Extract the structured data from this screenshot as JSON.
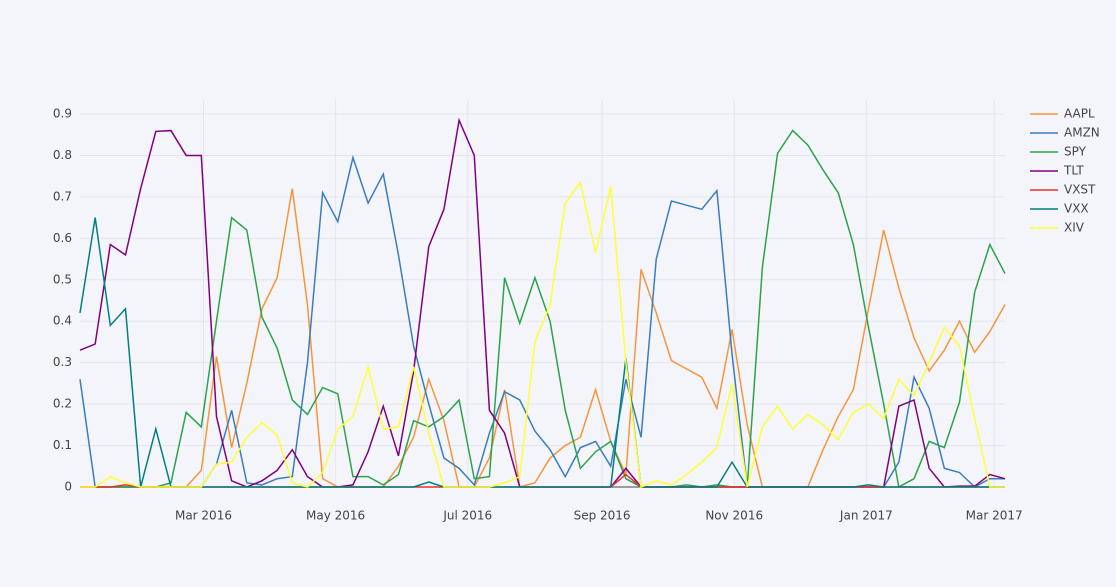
{
  "chart_data": {
    "type": "line",
    "x": [
      "2016-01-04",
      "2016-01-11",
      "2016-01-18",
      "2016-01-25",
      "2016-02-01",
      "2016-02-08",
      "2016-02-15",
      "2016-02-22",
      "2016-02-29",
      "2016-03-07",
      "2016-03-14",
      "2016-03-21",
      "2016-03-28",
      "2016-04-04",
      "2016-04-11",
      "2016-04-18",
      "2016-04-25",
      "2016-05-02",
      "2016-05-09",
      "2016-05-16",
      "2016-05-23",
      "2016-05-30",
      "2016-06-06",
      "2016-06-13",
      "2016-06-20",
      "2016-06-27",
      "2016-07-04",
      "2016-07-11",
      "2016-07-18",
      "2016-07-25",
      "2016-08-01",
      "2016-08-08",
      "2016-08-15",
      "2016-08-22",
      "2016-08-29",
      "2016-09-05",
      "2016-09-12",
      "2016-09-19",
      "2016-09-26",
      "2016-10-03",
      "2016-10-10",
      "2016-10-17",
      "2016-10-24",
      "2016-10-31",
      "2016-11-07",
      "2016-11-14",
      "2016-11-21",
      "2016-11-28",
      "2016-12-05",
      "2016-12-12",
      "2016-12-19",
      "2016-12-26",
      "2017-01-02",
      "2017-01-09",
      "2017-01-16",
      "2017-01-23",
      "2017-01-30",
      "2017-02-06",
      "2017-02-13",
      "2017-02-20",
      "2017-02-27",
      "2017-03-06"
    ],
    "series": [
      {
        "name": "AAPL",
        "color": "#f7953a",
        "values": [
          0,
          0,
          0,
          0,
          0,
          0,
          0,
          0,
          0.04,
          0.315,
          0.095,
          0.25,
          0.43,
          0.505,
          0.72,
          0.44,
          0.02,
          0,
          0,
          0,
          0,
          0.05,
          0.12,
          0.26,
          0.16,
          0,
          0,
          0.07,
          0.235,
          0,
          0.01,
          0.07,
          0.1,
          0.12,
          0.235,
          0.11,
          0.03,
          0.525,
          0.42,
          0.305,
          0.285,
          0.265,
          0.19,
          0.38,
          0.15,
          0,
          0,
          0,
          0,
          0.09,
          0.17,
          0.235,
          0.43,
          0.62,
          0.48,
          0.36,
          0.28,
          0.33,
          0.4,
          0.325,
          0.375,
          0.44
        ]
      },
      {
        "name": "AMZN",
        "color": "#3a7dbf",
        "values": [
          0.26,
          0,
          0,
          0,
          0,
          0,
          0,
          0,
          0,
          0.055,
          0.185,
          0.01,
          0.005,
          0.02,
          0.025,
          0.3,
          0.71,
          0.64,
          0.795,
          0.685,
          0.755,
          0.56,
          0.34,
          0.2,
          0.07,
          0.045,
          0.005,
          0.13,
          0.23,
          0.21,
          0.135,
          0.09,
          0.025,
          0.095,
          0.11,
          0.05,
          0.26,
          0.12,
          0.55,
          0.69,
          0.68,
          0.67,
          0.715,
          0.32,
          0,
          0,
          0,
          0,
          0,
          0,
          0,
          0,
          0,
          0,
          0.06,
          0.265,
          0.19,
          0.045,
          0.035,
          0,
          0.02,
          0.02
        ]
      },
      {
        "name": "SPY",
        "color": "#2ca34a",
        "values": [
          0,
          0,
          0,
          0,
          0,
          0,
          0.01,
          0.18,
          0.145,
          0.4,
          0.65,
          0.62,
          0.41,
          0.335,
          0.21,
          0.175,
          0.24,
          0.225,
          0.025,
          0.025,
          0.005,
          0.03,
          0.16,
          0.145,
          0.17,
          0.21,
          0.02,
          0.025,
          0.505,
          0.395,
          0.505,
          0.4,
          0.185,
          0.045,
          0.085,
          0.11,
          0.02,
          0,
          0,
          0,
          0.005,
          0,
          0.005,
          0,
          0,
          0.53,
          0.805,
          0.86,
          0.825,
          0.765,
          0.71,
          0.585,
          0.385,
          0.2,
          0,
          0.02,
          0.11,
          0.095,
          0.205,
          0.47,
          0.585,
          0.515
        ]
      },
      {
        "name": "TLT",
        "color": "#800080",
        "values": [
          0.33,
          0.345,
          0.585,
          0.56,
          0.72,
          0.858,
          0.86,
          0.8,
          0.8,
          0.17,
          0.015,
          0,
          0.015,
          0.04,
          0.09,
          0.025,
          0,
          0,
          0.005,
          0.085,
          0.195,
          0.075,
          0.28,
          0.58,
          0.67,
          0.885,
          0.8,
          0.185,
          0.13,
          0,
          0,
          0,
          0,
          0,
          0,
          0,
          0.045,
          0,
          0,
          0,
          0,
          0,
          0,
          0,
          0,
          0,
          0,
          0,
          0,
          0,
          0,
          0,
          0,
          0,
          0.195,
          0.21,
          0.045,
          0,
          0.002,
          0.002,
          0.03,
          0.02
        ]
      },
      {
        "name": "VXST",
        "color": "#e6352b",
        "values": [
          0,
          0,
          0,
          0.005,
          0,
          0,
          0,
          0,
          0,
          0,
          0,
          0,
          0,
          0,
          0,
          0,
          0,
          0,
          0,
          0,
          0,
          0,
          0,
          0,
          0,
          0,
          0,
          0,
          0,
          0,
          0,
          0,
          0,
          0,
          0,
          0,
          0.03,
          0,
          0,
          0,
          0,
          0,
          0,
          0,
          0,
          0,
          0,
          0,
          0,
          0,
          0,
          0,
          0,
          0,
          0,
          0,
          0,
          0,
          0,
          0,
          0,
          0
        ]
      },
      {
        "name": "VXX",
        "color": "#008080",
        "values": [
          0.42,
          0.65,
          0.39,
          0.43,
          0,
          0.14,
          0,
          0,
          0,
          0,
          0,
          0,
          0,
          0,
          0,
          0,
          0,
          0,
          0,
          0,
          0,
          0,
          0,
          0.012,
          0,
          0,
          0,
          0,
          0,
          0,
          0,
          0,
          0,
          0,
          0,
          0,
          0.31,
          0,
          0,
          0,
          0,
          0,
          0,
          0.06,
          0,
          0,
          0,
          0,
          0,
          0,
          0,
          0,
          0.005,
          0,
          0,
          0,
          0,
          0,
          0,
          0,
          0,
          0
        ]
      },
      {
        "name": "XIV",
        "color": "#ffff33",
        "values": [
          0,
          0,
          0.025,
          0.01,
          0,
          0,
          0,
          0,
          0,
          0.055,
          0.06,
          0.12,
          0.155,
          0.125,
          0.01,
          0,
          0.035,
          0.14,
          0.17,
          0.29,
          0.14,
          0.145,
          0.29,
          0.13,
          0,
          0,
          0,
          0,
          0.01,
          0.025,
          0.35,
          0.44,
          0.685,
          0.735,
          0.565,
          0.725,
          0.3,
          0,
          0.015,
          0.005,
          0.03,
          0.06,
          0.095,
          0.25,
          0,
          0.145,
          0.195,
          0.14,
          0.175,
          0.15,
          0.115,
          0.18,
          0.2,
          0.165,
          0.26,
          0.22,
          0.3,
          0.385,
          0.34,
          0.165,
          0,
          0
        ]
      }
    ],
    "xlim": [
      "2016-01-04",
      "2017-03-06"
    ],
    "xticks": [
      {
        "value": "2016-03-01",
        "label": "Mar 2016"
      },
      {
        "value": "2016-05-01",
        "label": "May 2016"
      },
      {
        "value": "2016-07-01",
        "label": "Jul 2016"
      },
      {
        "value": "2016-09-01",
        "label": "Sep 2016"
      },
      {
        "value": "2016-11-01",
        "label": "Nov 2016"
      },
      {
        "value": "2017-01-01",
        "label": "Jan 2017"
      },
      {
        "value": "2017-03-01",
        "label": "Mar 2017"
      }
    ],
    "ylim": [
      0,
      0.9
    ],
    "yticks": [
      0,
      0.1,
      0.2,
      0.3,
      0.4,
      0.5,
      0.6,
      0.7,
      0.8,
      0.9
    ],
    "grid": true,
    "legend": "right"
  }
}
